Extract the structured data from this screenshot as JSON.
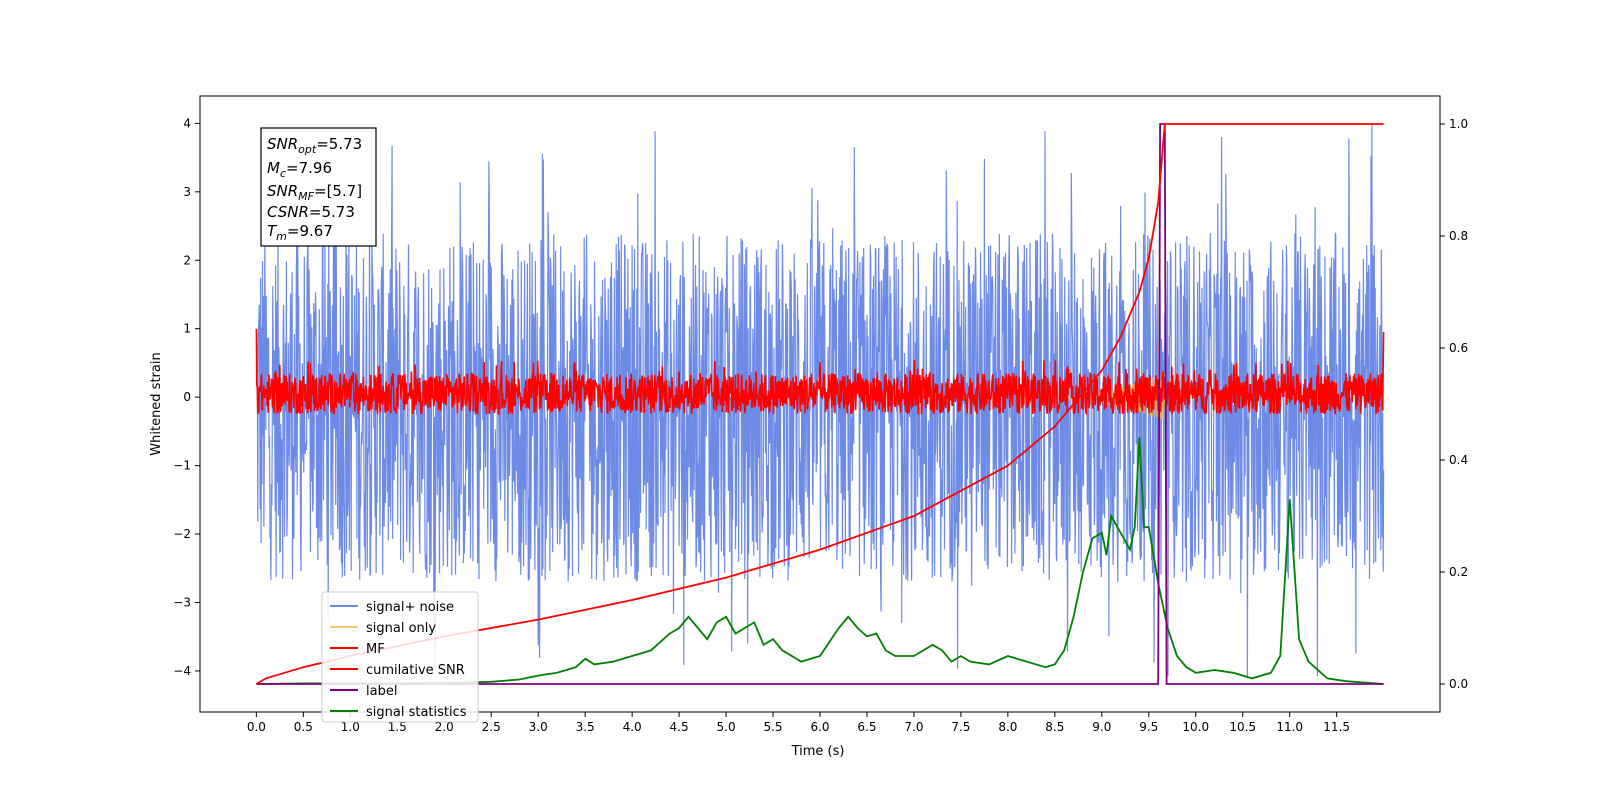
{
  "chart_data": {
    "type": "line",
    "xlabel": "Time (s)",
    "ylabel": "Whitened strain",
    "xlim": [
      -0.6,
      12.6
    ],
    "ylim_left": [
      -4.6,
      4.4
    ],
    "ylim_right": [
      -0.05,
      1.05
    ],
    "x_ticks": [
      "0.0",
      "0.5",
      "1.0",
      "1.5",
      "2.0",
      "2.5",
      "3.0",
      "3.5",
      "4.0",
      "4.5",
      "5.0",
      "5.5",
      "6.0",
      "6.5",
      "7.0",
      "7.5",
      "8.0",
      "8.5",
      "9.0",
      "9.5",
      "10.0",
      "10.5",
      "11.0",
      "11.5"
    ],
    "y_ticks_left": [
      "4",
      "3",
      "2",
      "1",
      "0",
      "−1",
      "−2",
      "−3",
      "−4"
    ],
    "y_ticks_right": [
      "1.0",
      "0.8",
      "0.6",
      "0.4",
      "0.2",
      "0.0"
    ],
    "annotation": {
      "snr_opt": {
        "main": "SNR",
        "sub": "opt",
        "value": "=5.73"
      },
      "mc": {
        "main": "M",
        "sub": "c",
        "value": "=7.96"
      },
      "snr_mf": {
        "main": "SNR",
        "sub": "MF",
        "value": "=[5.7]"
      },
      "csnr": {
        "main": "CSNR",
        "sub": "",
        "value": "=5.73"
      },
      "tm": {
        "main": "T",
        "sub": "m",
        "value": "=9.67"
      }
    },
    "series": [
      {
        "name": "signal+ noise",
        "color": "#6d8be6",
        "axis": "left",
        "noise_band": [
          -2.7,
          2.4
        ],
        "spike_range": [
          -4.1,
          4.0
        ],
        "x_range": [
          0.0,
          12.0
        ]
      },
      {
        "name": "signal only",
        "color": "#f5b041",
        "axis": "left",
        "chirp_end": 9.67,
        "peak_amplitude": 0.35
      },
      {
        "name": "MF",
        "color": "#ff0000",
        "axis": "left",
        "noise_band": [
          -0.25,
          0.55
        ],
        "x_range": [
          0.0,
          12.0
        ]
      },
      {
        "name": "cumilative SNR",
        "color": "#ff0000",
        "axis": "right",
        "x": [
          0.0,
          0.1,
          0.5,
          1.0,
          2.0,
          3.0,
          4.0,
          5.0,
          6.0,
          7.0,
          8.0,
          8.5,
          9.0,
          9.2,
          9.4,
          9.5,
          9.6,
          9.67,
          12.0
        ],
        "y": [
          0.0,
          0.01,
          0.03,
          0.05,
          0.085,
          0.115,
          0.15,
          0.19,
          0.24,
          0.3,
          0.39,
          0.46,
          0.56,
          0.62,
          0.7,
          0.76,
          0.86,
          1.0,
          1.0
        ]
      },
      {
        "name": "label",
        "color": "#800080",
        "axis": "right",
        "x": [
          0.0,
          9.6,
          9.62,
          9.67,
          9.69,
          12.0
        ],
        "y": [
          0.0,
          0.0,
          1.0,
          1.0,
          0.0,
          0.0
        ]
      },
      {
        "name": "signal statistics",
        "color": "#008000",
        "axis": "right",
        "x": [
          0.0,
          0.5,
          1.0,
          1.5,
          2.0,
          2.5,
          2.8,
          3.0,
          3.2,
          3.4,
          3.5,
          3.6,
          3.8,
          4.0,
          4.2,
          4.4,
          4.5,
          4.6,
          4.7,
          4.8,
          4.9,
          5.0,
          5.1,
          5.2,
          5.3,
          5.4,
          5.5,
          5.6,
          5.7,
          5.8,
          6.0,
          6.2,
          6.3,
          6.4,
          6.5,
          6.6,
          6.7,
          6.8,
          7.0,
          7.1,
          7.2,
          7.3,
          7.4,
          7.5,
          7.6,
          7.8,
          8.0,
          8.2,
          8.4,
          8.5,
          8.6,
          8.7,
          8.8,
          8.9,
          9.0,
          9.05,
          9.1,
          9.2,
          9.3,
          9.35,
          9.4,
          9.45,
          9.5,
          9.6,
          9.7,
          9.8,
          9.9,
          10.0,
          10.2,
          10.4,
          10.6,
          10.8,
          10.9,
          11.0,
          11.1,
          11.2,
          11.4,
          11.6,
          12.0
        ],
        "y": [
          0.0,
          0.001,
          0.001,
          0.001,
          0.002,
          0.004,
          0.008,
          0.015,
          0.02,
          0.03,
          0.045,
          0.035,
          0.04,
          0.05,
          0.06,
          0.09,
          0.1,
          0.12,
          0.1,
          0.08,
          0.11,
          0.12,
          0.09,
          0.1,
          0.11,
          0.07,
          0.08,
          0.06,
          0.05,
          0.04,
          0.05,
          0.1,
          0.12,
          0.1,
          0.085,
          0.09,
          0.06,
          0.05,
          0.05,
          0.06,
          0.07,
          0.06,
          0.04,
          0.05,
          0.04,
          0.035,
          0.05,
          0.04,
          0.03,
          0.035,
          0.06,
          0.12,
          0.2,
          0.26,
          0.27,
          0.23,
          0.3,
          0.27,
          0.24,
          0.28,
          0.44,
          0.28,
          0.28,
          0.18,
          0.1,
          0.05,
          0.03,
          0.02,
          0.025,
          0.02,
          0.01,
          0.02,
          0.05,
          0.33,
          0.08,
          0.04,
          0.01,
          0.005,
          0.0
        ]
      }
    ],
    "legend": {
      "placement": "lower-left",
      "entries": [
        "signal+ noise",
        "signal only",
        "MF",
        "cumilative SNR",
        "label",
        "signal statistics"
      ]
    },
    "grid": false
  }
}
